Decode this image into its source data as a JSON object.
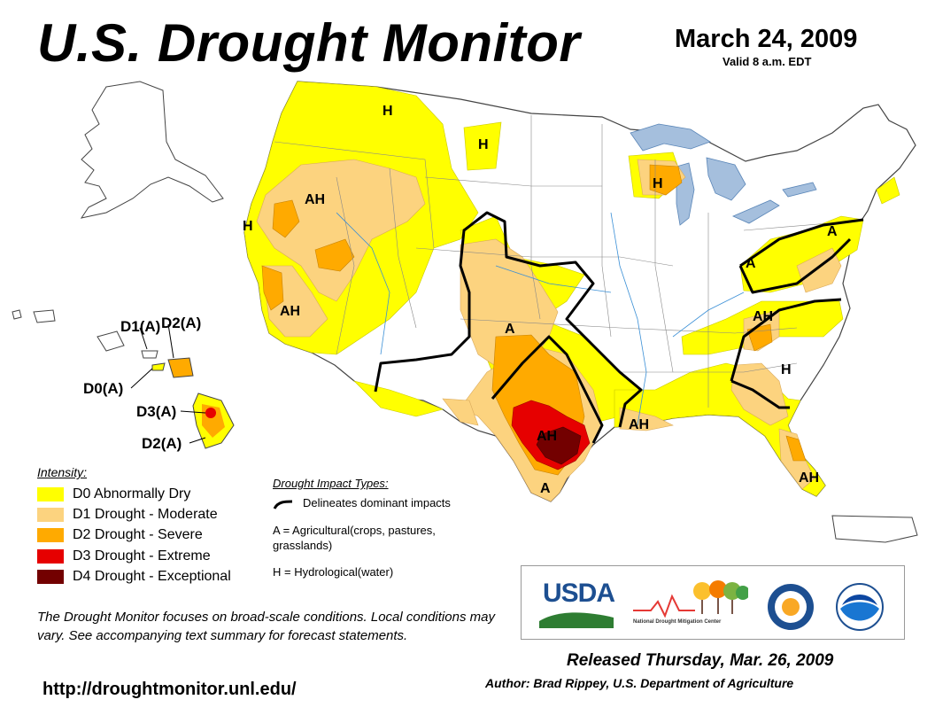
{
  "header": {
    "title": "U.S. Drought Monitor",
    "date": "March 24, 2009",
    "valid": "Valid 8 a.m. EDT"
  },
  "map": {
    "region_labels": [
      "H",
      "H",
      "H",
      "AH",
      "H",
      "AH",
      "A",
      "A",
      "AH",
      "H",
      "A",
      "AH",
      "AH",
      "A",
      "AH"
    ],
    "hawaii_labels": [
      "D1(A)",
      "D2(A)",
      "D0(A)",
      "D3(A)",
      "D2(A)"
    ]
  },
  "legend": {
    "title": "Intensity:",
    "items": [
      {
        "label": "D0 Abnormally Dry",
        "color": "#ffff00"
      },
      {
        "label": "D1 Drought - Moderate",
        "color": "#fcd37f"
      },
      {
        "label": "D2 Drought - Severe",
        "color": "#ffaa00"
      },
      {
        "label": "D3 Drought - Extreme",
        "color": "#e60000"
      },
      {
        "label": "D4 Drought - Exceptional",
        "color": "#730000"
      }
    ]
  },
  "impacts": {
    "title": "Drought Impact Types:",
    "line": "Delineates dominant impacts",
    "agricultural": "A = Agricultural(crops, pastures, grasslands)",
    "hydrological": "H = Hydrological(water)"
  },
  "note": "The Drought Monitor focuses on broad-scale conditions. Local conditions may vary. See accompanying text summary for forecast statements.",
  "footer": {
    "url": "http://droughtmonitor.unl.edu/",
    "released": "Released Thursday, Mar. 26, 2009",
    "author": "Author: Brad Rippey, U.S. Department of Agriculture"
  },
  "logos": {
    "usda": "USDA",
    "ndmc": "National Drought Mitigation Center"
  },
  "colors": {
    "d0": "#ffff00",
    "d1": "#fcd37f",
    "d2": "#ffaa00",
    "d3": "#e60000",
    "d4": "#730000",
    "water": "#a5bfdd",
    "river": "#3a8fd6",
    "usda_blue": "#1d4f91",
    "usda_green": "#2e7d32"
  }
}
